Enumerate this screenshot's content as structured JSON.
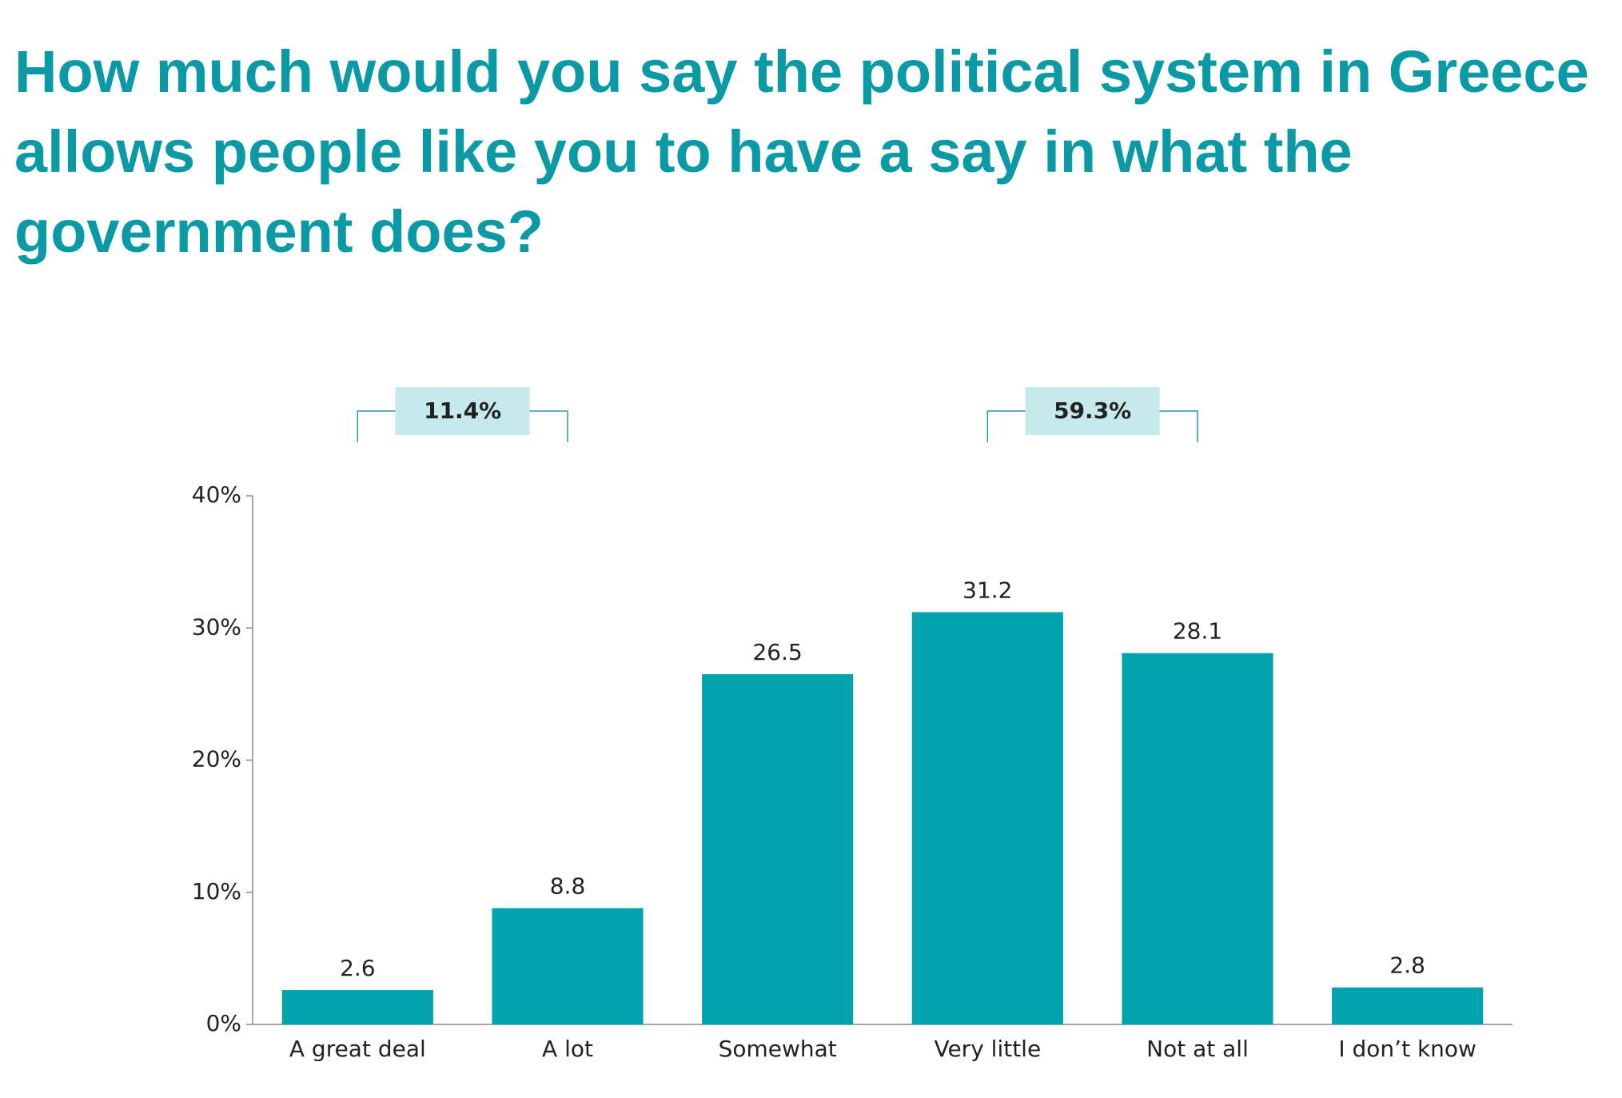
{
  "chart_data": {
    "type": "bar",
    "title": "How much would you say the political system in Greece allows people like you to have a say in what the government does?",
    "categories": [
      "A great deal",
      "A lot",
      "Somewhat",
      "Very little",
      "Not at all",
      "I don’t know"
    ],
    "values": [
      2.6,
      8.8,
      26.5,
      31.2,
      28.1,
      2.8
    ],
    "color": "#00a3ae",
    "ylim": [
      0,
      40
    ],
    "yticks": [
      {
        "value": 0,
        "label": "0%"
      },
      {
        "value": 10,
        "label": "10%"
      },
      {
        "value": 20,
        "label": "20%"
      },
      {
        "value": 30,
        "label": "30%"
      },
      {
        "value": 40,
        "label": "40%"
      }
    ],
    "annotations": [
      {
        "value": 11.4,
        "label": "11.4%",
        "span": [
          0,
          1
        ]
      },
      {
        "value": 59.3,
        "label": "59.3%",
        "span": [
          3,
          4
        ]
      }
    ]
  }
}
